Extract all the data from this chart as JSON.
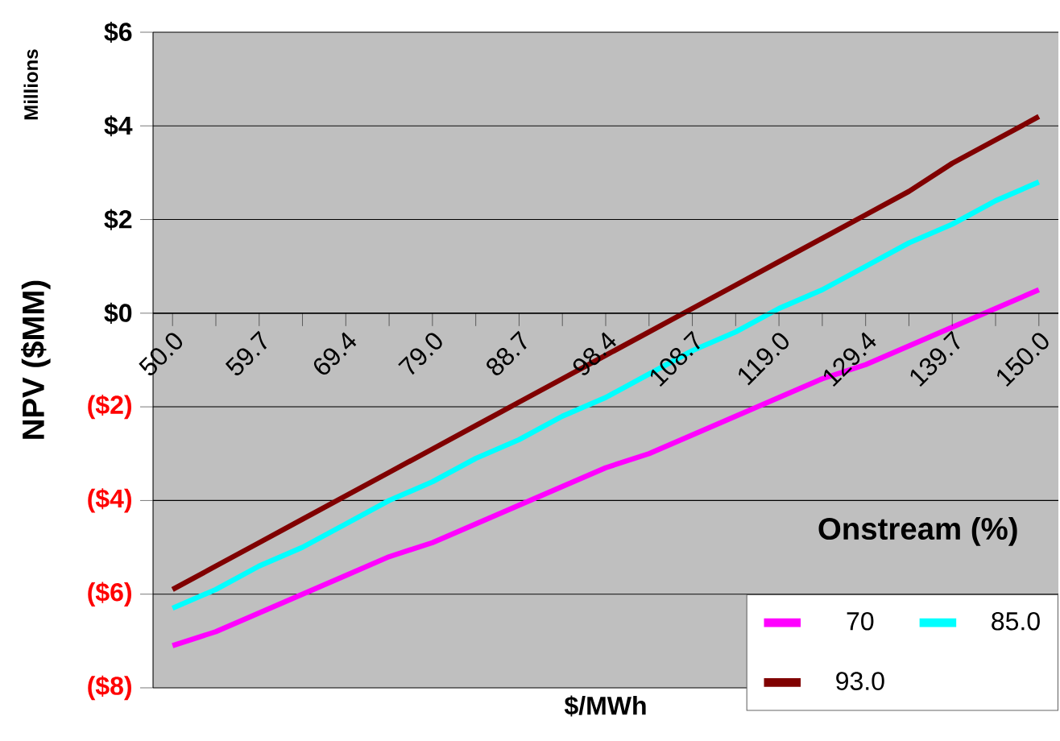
{
  "chart_data": {
    "type": "line",
    "xlabel": "$/MWh",
    "ylabel": "NPV ($MM)",
    "legend_title": "Onstream (%)",
    "annotations": [
      "Millions"
    ],
    "categories": [
      "50.0",
      null,
      "59.7",
      null,
      "69.4",
      null,
      "79.0",
      null,
      "88.7",
      null,
      "98.4",
      null,
      "108.7",
      null,
      "119.0",
      null,
      "129.4",
      null,
      "139.7",
      null,
      "150.0"
    ],
    "series": [
      {
        "name": "70",
        "color": "#ff00ff",
        "values": [
          -7.1,
          -6.8,
          -6.4,
          -6.0,
          -5.6,
          -5.2,
          -4.9,
          -4.5,
          -4.1,
          -3.7,
          -3.3,
          -3.0,
          -2.6,
          -2.2,
          -1.8,
          -1.4,
          -1.1,
          -0.7,
          -0.3,
          0.1,
          0.5
        ]
      },
      {
        "name": "85.0",
        "color": "#00ffff",
        "values": [
          -6.3,
          -5.9,
          -5.4,
          -5.0,
          -4.5,
          -4.0,
          -3.6,
          -3.1,
          -2.7,
          -2.2,
          -1.8,
          -1.3,
          -0.8,
          -0.4,
          0.1,
          0.5,
          1.0,
          1.5,
          1.9,
          2.4,
          2.8
        ]
      },
      {
        "name": "93.0",
        "color": "#800000",
        "values": [
          -5.9,
          -5.4,
          -4.9,
          -4.4,
          -3.9,
          -3.4,
          -2.9,
          -2.4,
          -1.9,
          -1.4,
          -0.9,
          -0.4,
          0.1,
          0.6,
          1.1,
          1.6,
          2.1,
          2.6,
          3.2,
          3.7,
          4.2
        ]
      }
    ],
    "ylim": [
      -8,
      6
    ],
    "yticks": [
      {
        "value": -8,
        "label": "($8)"
      },
      {
        "value": -6,
        "label": "($6)"
      },
      {
        "value": -4,
        "label": "($4)"
      },
      {
        "value": -2,
        "label": "($2)"
      },
      {
        "value": 0,
        "label": "$0"
      },
      {
        "value": 2,
        "label": "$2"
      },
      {
        "value": 4,
        "label": "$4"
      },
      {
        "value": 6,
        "label": "$6"
      }
    ],
    "grid": "y",
    "legend": "bottom right",
    "marker": "none",
    "line_style": "solid"
  }
}
